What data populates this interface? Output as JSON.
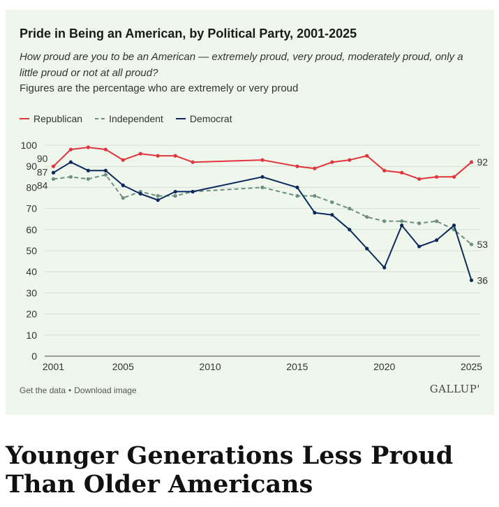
{
  "card": {
    "title": "Pride in Being an American, by Political Party, 2001-2025",
    "subtitle": "How proud are you to be an American — extremely proud, very proud, moderately proud, only a little proud or not at all proud?",
    "note": "Figures are the percentage who are extremely or very proud",
    "footer": {
      "get_data": "Get the data",
      "separator": "•",
      "download": "Download image"
    },
    "brand": "GALLUP'"
  },
  "headline": "Younger Generations Less Proud Than Older Americans",
  "chart_data": {
    "type": "line",
    "ylim": [
      0,
      100
    ],
    "xlim": [
      2000.5,
      2025.5
    ],
    "yticks": [
      0,
      10,
      20,
      30,
      40,
      50,
      60,
      70,
      80,
      90,
      100
    ],
    "xticks": [
      2001,
      2005,
      2010,
      2015,
      2020,
      2025
    ],
    "grid": true,
    "legend_position": "top-left",
    "series": [
      {
        "name": "Republican",
        "color": "#e0353d",
        "dashed": false,
        "x": [
          2001,
          2002,
          2003,
          2004,
          2005,
          2006,
          2007,
          2008,
          2009,
          2013,
          2015,
          2016,
          2017,
          2018,
          2019,
          2020,
          2021,
          2022,
          2023,
          2024,
          2025
        ],
        "y": [
          90,
          98,
          99,
          98,
          93,
          96,
          95,
          95,
          92,
          93,
          90,
          89,
          92,
          93,
          95,
          88,
          87,
          84,
          85,
          85,
          92
        ],
        "start_label": "90",
        "end_label": "92"
      },
      {
        "name": "Independent",
        "color": "#6e8f7c",
        "dashed": true,
        "x": [
          2001,
          2002,
          2003,
          2004,
          2005,
          2006,
          2007,
          2008,
          2009,
          2013,
          2015,
          2016,
          2017,
          2018,
          2019,
          2020,
          2021,
          2022,
          2023,
          2024,
          2025
        ],
        "y": [
          84,
          85,
          84,
          86,
          75,
          78,
          76,
          76,
          78,
          80,
          76,
          76,
          73,
          70,
          66,
          64,
          64,
          63,
          64,
          60,
          53
        ],
        "start_label": "84",
        "end_label": "53"
      },
      {
        "name": "Democrat",
        "color": "#0d2a5e",
        "dashed": false,
        "x": [
          2001,
          2002,
          2003,
          2004,
          2005,
          2006,
          2007,
          2008,
          2009,
          2013,
          2015,
          2016,
          2017,
          2018,
          2019,
          2020,
          2021,
          2022,
          2023,
          2024,
          2025
        ],
        "y": [
          87,
          92,
          88,
          88,
          81,
          77,
          74,
          78,
          78,
          85,
          80,
          68,
          67,
          60,
          51,
          42,
          62,
          52,
          55,
          62,
          36
        ],
        "start_label": "87",
        "end_label": "36"
      }
    ]
  }
}
